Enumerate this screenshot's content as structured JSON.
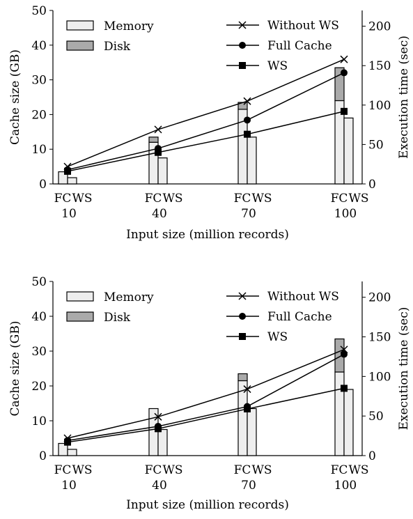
{
  "chart_data": [
    {
      "type": "bar",
      "xlabel": "Input size (million records)",
      "ylabel_left": "Cache size (GB)",
      "ylabel_right": "Execution time (sec)",
      "ylim_left": [
        0,
        50
      ],
      "ylim_right": [
        0,
        220
      ],
      "yticks_left": [
        "0",
        "10",
        "20",
        "30",
        "40",
        "50"
      ],
      "yticks_right": [
        "0",
        "50",
        "100",
        "150",
        "200"
      ],
      "groups": [
        "10",
        "40",
        "70",
        "100"
      ],
      "bar_labels": [
        "FC",
        "WS"
      ],
      "legend": {
        "bars": [
          "Memory",
          "Disk"
        ],
        "lines": [
          "Without WS",
          "Full Cache",
          "WS"
        ]
      },
      "colors": {
        "memory": "#eeeeee",
        "disk": "#aaaaaa",
        "line": "#000000"
      },
      "bars": {
        "fc_memory": [
          3.5,
          12.0,
          21.5,
          24.0
        ],
        "fc_disk": [
          0,
          1.5,
          2.0,
          9.5
        ],
        "ws_memory": [
          1.8,
          7.5,
          13.5,
          19.0
        ],
        "ws_disk": [
          0,
          0,
          0,
          0
        ]
      },
      "series": [
        {
          "name": "Without WS",
          "marker": "x",
          "values": [
            22,
            69,
            105,
            158
          ]
        },
        {
          "name": "Full Cache",
          "marker": "circle",
          "values": [
            18,
            45,
            81,
            141
          ]
        },
        {
          "name": "WS",
          "marker": "square",
          "values": [
            16,
            40,
            63,
            92
          ]
        }
      ]
    },
    {
      "type": "bar",
      "xlabel": "Input size (million records)",
      "ylabel_left": "Cache size (GB)",
      "ylabel_right": "Execution time (sec)",
      "ylim_left": [
        0,
        50
      ],
      "ylim_right": [
        0,
        220
      ],
      "yticks_left": [
        "0",
        "10",
        "20",
        "30",
        "40",
        "50"
      ],
      "yticks_right": [
        "0",
        "50",
        "100",
        "150",
        "200"
      ],
      "groups": [
        "10",
        "40",
        "70",
        "100"
      ],
      "bar_labels": [
        "FC",
        "WS"
      ],
      "legend": {
        "bars": [
          "Memory",
          "Disk"
        ],
        "lines": [
          "Without WS",
          "Full Cache",
          "WS"
        ]
      },
      "colors": {
        "memory": "#eeeeee",
        "disk": "#aaaaaa",
        "line": "#000000"
      },
      "bars": {
        "fc_memory": [
          3.5,
          13.5,
          21.5,
          24.0
        ],
        "fc_disk": [
          0,
          0,
          2.0,
          9.5
        ],
        "ws_memory": [
          1.8,
          7.5,
          13.5,
          19.0
        ],
        "ws_disk": [
          0,
          0,
          0,
          0
        ]
      },
      "series": [
        {
          "name": "Without WS",
          "marker": "x",
          "values": [
            22,
            49,
            84,
            134
          ]
        },
        {
          "name": "Full Cache",
          "marker": "circle",
          "values": [
            19,
            37,
            62,
            128
          ]
        },
        {
          "name": "WS",
          "marker": "square",
          "values": [
            17,
            34,
            59,
            85
          ]
        }
      ]
    }
  ]
}
